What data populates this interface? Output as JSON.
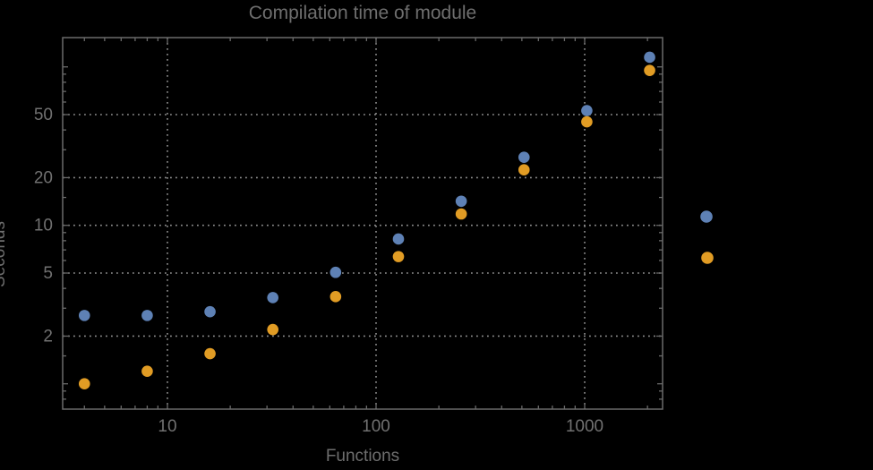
{
  "chart_data": {
    "type": "scatter",
    "title": "Compilation time of module",
    "xlabel": "Functions",
    "ylabel": "Seconds",
    "x_scale": "log",
    "y_scale": "log",
    "x_range": [
      3.15,
      2360
    ],
    "y_range": [
      0.69,
      153
    ],
    "x_ticks": [
      10,
      100,
      1000
    ],
    "x_tick_labels": [
      "10",
      "100",
      "1000"
    ],
    "y_ticks": [
      2,
      5,
      10,
      20,
      50
    ],
    "y_tick_labels": [
      "2",
      "5",
      "10",
      "20",
      "50"
    ],
    "grid": "dotted",
    "grid_color": "#909090",
    "frame_color": "#6a6a6a",
    "background": "#000000",
    "x": [
      4,
      8,
      16,
      32,
      64,
      128,
      256,
      512,
      1024,
      2048
    ],
    "series": [
      {
        "name": "series-1-blue",
        "color": "#5e81b5",
        "values": [
          2.7,
          2.7,
          2.85,
          3.5,
          5.05,
          8.2,
          14.2,
          26.9,
          53,
          115
        ]
      },
      {
        "name": "series-2-orange",
        "color": "#e19c24",
        "values": [
          1.0,
          1.2,
          1.55,
          2.2,
          3.55,
          6.35,
          11.8,
          22.4,
          45,
          95
        ]
      }
    ],
    "legend_position": "right",
    "legend_markers": [
      {
        "name": "legend-marker-blue",
        "color": "#5e81b5"
      },
      {
        "name": "legend-marker-orange",
        "color": "#e19c24"
      }
    ]
  }
}
